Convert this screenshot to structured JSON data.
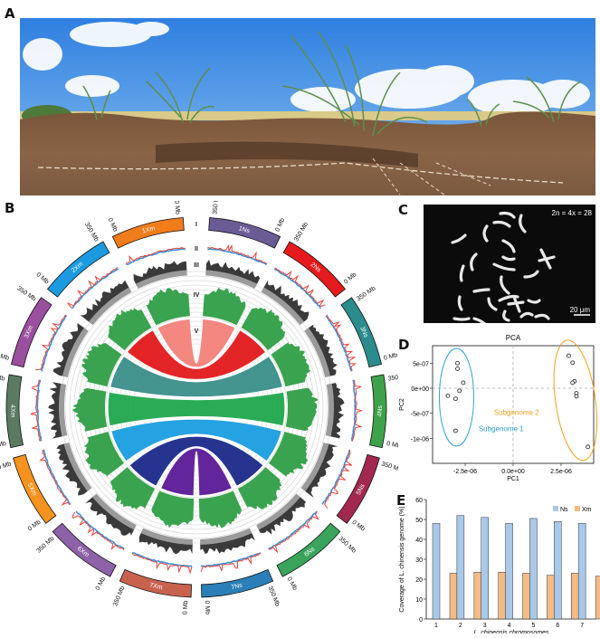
{
  "panels": {
    "A": {
      "letter": "A",
      "description": "field photo of plants with roots exposed in soil profile"
    },
    "B": {
      "letter": "B"
    },
    "C": {
      "letter": "C",
      "ploidy_label": "2n = 4x = 28",
      "scale_bar": "20 μm"
    },
    "D": {
      "letter": "D"
    },
    "E": {
      "letter": "E"
    }
  },
  "circos": {
    "track_labels": [
      "I",
      "II",
      "III",
      "IV",
      "V"
    ],
    "chromosomes": [
      {
        "name": "1Ns",
        "color": "#6b5b95",
        "start_label": "0 Mb",
        "end_label": "350 Mb"
      },
      {
        "name": "2Ns",
        "color": "#e41a1c",
        "start_label": "0 Mb",
        "end_label": "350 Mb"
      },
      {
        "name": "3Ns",
        "color": "#2a8c8c",
        "start_label": "0 Mb",
        "end_label": "350 Mb"
      },
      {
        "name": "4Ns",
        "color": "#3da24a",
        "start_label": "0 Mb",
        "end_label": "350 Mb"
      },
      {
        "name": "5Ns",
        "color": "#a3284f",
        "start_label": "0 Mb",
        "end_label": "350 Mb"
      },
      {
        "name": "6Ns",
        "color": "#3ba45c",
        "start_label": "0 Mb",
        "end_label": "350 Mb"
      },
      {
        "name": "7Ns",
        "color": "#2b7fb8",
        "start_label": "0 Mb",
        "end_label": "350 Mb"
      },
      {
        "name": "7Xm",
        "color": "#c8624f",
        "start_label": "0 Mb",
        "end_label": "350 Mb"
      },
      {
        "name": "6Xm",
        "color": "#8e62a8",
        "start_label": "0 Mb",
        "end_label": "350 Mb"
      },
      {
        "name": "5Xm",
        "color": "#f6921e",
        "start_label": "0 Mb",
        "end_label": "350 Mb"
      },
      {
        "name": "4Xm",
        "color": "#5a7a62",
        "start_label": "0 Mb",
        "end_label": "350 Mb"
      },
      {
        "name": "3Xm",
        "color": "#9b4f9f",
        "start_label": "0 Mb",
        "end_label": "350 Mb"
      },
      {
        "name": "2Xm",
        "color": "#1b9ae0",
        "start_label": "0 Mb",
        "end_label": "350 Mb"
      },
      {
        "name": "1Xm",
        "color": "#f07c1a",
        "start_label": "0 Mb",
        "end_label": "350 Mb"
      }
    ],
    "link_colors": [
      "#f4817a",
      "#e31a1c",
      "#3a8f8b",
      "#1fa84e",
      "#1a9ee0",
      "#1c2a8a",
      "#5b1a96"
    ],
    "density_color": "#3aa34f",
    "line_track_colors": {
      "red": "#e8423a",
      "blue": "#3b8fd6"
    }
  },
  "chart_data": [
    {
      "type": "scatter",
      "title": "PCA",
      "xlabel": "PC1",
      "ylabel": "PC2",
      "xticks": [
        "-2.5e-06",
        "0.0e+00",
        "2.5e-06"
      ],
      "yticks": [
        "5e-07",
        "0e+00",
        "-5e-07",
        "-1e-06"
      ],
      "xlim": [
        -4.2e-06,
        4.2e-06
      ],
      "ylim": [
        -1.5e-06,
        8.5e-07
      ],
      "series": [
        {
          "name": "Subgenome 1",
          "color": "#2fa3d8",
          "points": [
            [
              -2.9e-06,
              5e-07
            ],
            [
              -2.9e-06,
              3.9e-07
            ],
            [
              -2.6e-06,
              1.1e-07
            ],
            [
              -2.8e-06,
              -5e-08
            ],
            [
              -3.4e-06,
              -1.5e-07
            ],
            [
              -3e-06,
              -2.1e-07
            ],
            [
              -3e-06,
              -8.5e-07
            ]
          ]
        },
        {
          "name": "Subgenome 2",
          "color": "#f0a020",
          "points": [
            [
              2.9e-06,
              6.5e-07
            ],
            [
              3.1e-06,
              5.1e-07
            ],
            [
              3.2e-06,
              1.4e-07
            ],
            [
              3.1e-06,
              1.1e-07
            ],
            [
              3.3e-06,
              -1e-07
            ],
            [
              3.3e-06,
              -1.6e-07
            ],
            [
              3.9e-06,
              -1.17e-06
            ]
          ]
        }
      ],
      "annotations": [
        "Subgenome 1",
        "Subgenome 2"
      ],
      "reference_lines": {
        "x": 0,
        "y": 0,
        "style": "dashed"
      }
    },
    {
      "type": "bar",
      "title": "",
      "xlabel": "L. chinensis chromosomes",
      "ylabel": "Coverage of L. chinensis genome (%)",
      "categories": [
        "1",
        "2",
        "3",
        "4",
        "5",
        "6",
        "7"
      ],
      "ylim": [
        0,
        60
      ],
      "yticks": [
        0,
        10,
        20,
        30,
        40,
        50,
        60
      ],
      "legend_position": "top-right",
      "series": [
        {
          "name": "Ns",
          "color": "#a9c9ea",
          "values": [
            48,
            52,
            51,
            48,
            50.5,
            49,
            48
          ]
        },
        {
          "name": "Xm",
          "color": "#f5bb87",
          "values": [
            23,
            23.5,
            23.5,
            23,
            22,
            23,
            21.5
          ]
        }
      ]
    }
  ]
}
